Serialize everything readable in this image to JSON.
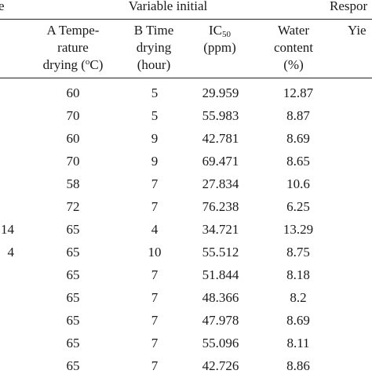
{
  "header": {
    "left_fragment": "e",
    "variable_group": "Variable initial",
    "response_group": "Respor",
    "col_temp": [
      "A Tempe-",
      "rature",
      "drying (",
      "o",
      "C)"
    ],
    "col_time": [
      "B Time",
      "drying",
      "(hour)"
    ],
    "col_ic50": [
      "IC",
      "50",
      "(ppm)"
    ],
    "col_water": [
      "Water",
      "content",
      "(%)"
    ],
    "col_yield": "Yie"
  },
  "rows": [
    {
      "run": "",
      "temp": "60",
      "time": "5",
      "ic50": "29.959",
      "water": "12.87"
    },
    {
      "run": "",
      "temp": "70",
      "time": "5",
      "ic50": "55.983",
      "water": "8.87"
    },
    {
      "run": "",
      "temp": "60",
      "time": "9",
      "ic50": "42.781",
      "water": "8.69"
    },
    {
      "run": "",
      "temp": "70",
      "time": "9",
      "ic50": "69.471",
      "water": "8.65"
    },
    {
      "run": "",
      "temp": "58",
      "time": "7",
      "ic50": "27.834",
      "water": "10.6"
    },
    {
      "run": "",
      "temp": "72",
      "time": "7",
      "ic50": "76.238",
      "water": "6.25"
    },
    {
      "run": "14",
      "temp": "65",
      "time": "4",
      "ic50": "34.721",
      "water": "13.29"
    },
    {
      "run": "4",
      "temp": "65",
      "time": "10",
      "ic50": "55.512",
      "water": "8.75"
    },
    {
      "run": "",
      "temp": "65",
      "time": "7",
      "ic50": "51.844",
      "water": "8.18"
    },
    {
      "run": "",
      "temp": "65",
      "time": "7",
      "ic50": "48.366",
      "water": "8.2"
    },
    {
      "run": "",
      "temp": "65",
      "time": "7",
      "ic50": "47.978",
      "water": "8.69"
    },
    {
      "run": "",
      "temp": "65",
      "time": "7",
      "ic50": "55.096",
      "water": "8.11"
    },
    {
      "run": "",
      "temp": "65",
      "time": "7",
      "ic50": "42.726",
      "water": "8.86"
    }
  ]
}
